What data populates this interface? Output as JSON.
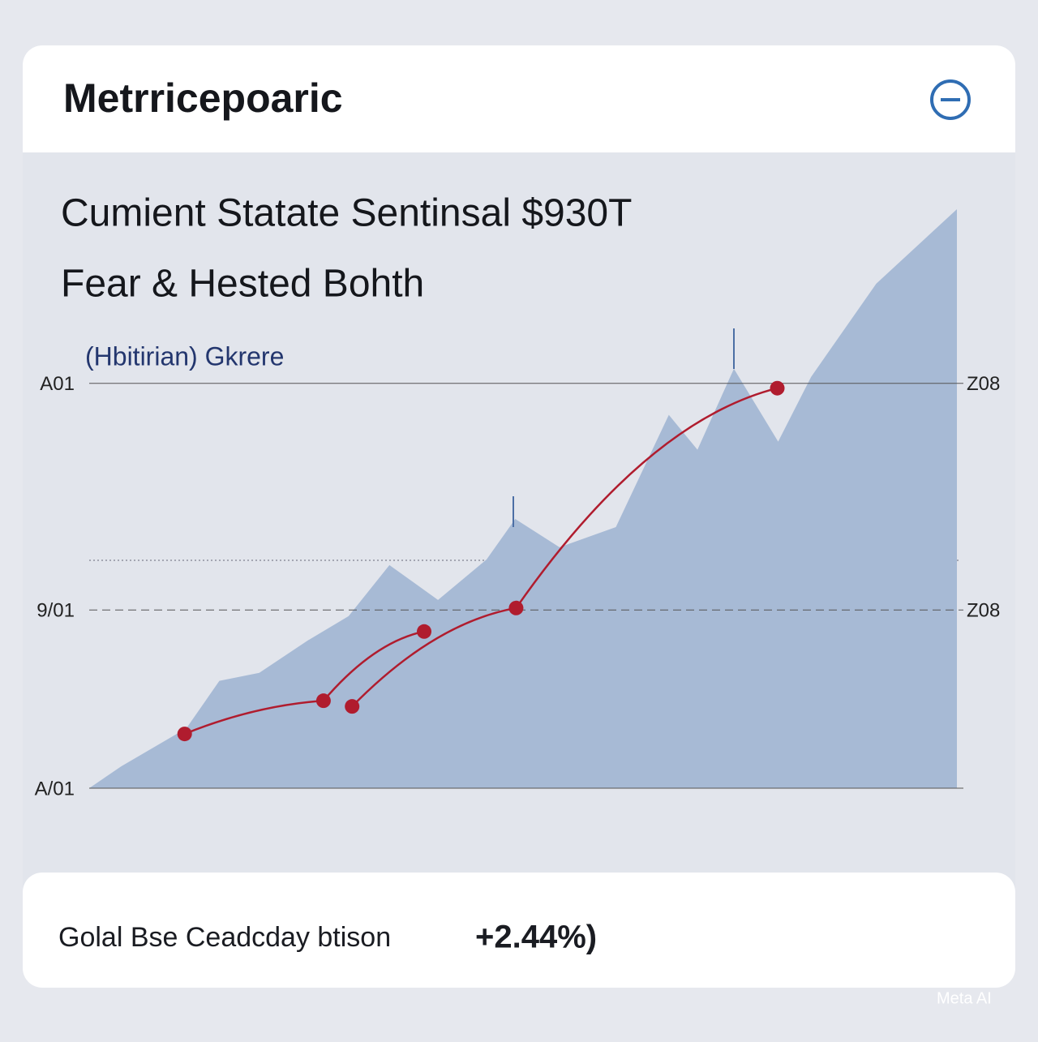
{
  "header": {
    "title": "Metrricepoaric"
  },
  "headline": [
    "Cumient Statate Sentinsal $930T",
    "Fear & Hested Bohth"
  ],
  "chart_data": {
    "type": "area",
    "subtitle": "(Hbitirian) Gkrere",
    "xlim": [
      0,
      100
    ],
    "ylim": [
      0,
      143
    ],
    "yticks": [
      {
        "value": 100,
        "label": "A01"
      },
      {
        "value": 44,
        "label": "9/01"
      },
      {
        "value": 0,
        "label": "A/01"
      }
    ],
    "y2lim": [
      0,
      143
    ],
    "y2ticks": [
      {
        "value": 100,
        "label": "Z08"
      },
      {
        "value": 44,
        "label": "Z08"
      }
    ],
    "series": [
      {
        "type": "area",
        "color": "#a7bad5",
        "x": [
          0,
          3.7,
          11.2,
          15,
          19.6,
          25.2,
          29.9,
          34.6,
          40.2,
          45.8,
          49.1,
          54.2,
          60.7,
          66.8,
          70.1,
          74.3,
          79.4,
          83.2,
          90.7,
          100
        ],
        "values": [
          0,
          5.4,
          14.8,
          26.5,
          28.5,
          36.5,
          42.5,
          55.1,
          46.5,
          56.5,
          66.5,
          59.5,
          64.5,
          92.2,
          83.6,
          103.6,
          85.6,
          101.6,
          124.6,
          143
        ]
      },
      {
        "type": "line",
        "color": "#b01c2e",
        "x": [
          11,
          27,
          38.6
        ],
        "values": [
          13.4,
          21.6,
          38.7
        ]
      },
      {
        "type": "line",
        "color": "#b01c2e",
        "x": [
          30.3,
          49.2,
          79.3
        ],
        "values": [
          20.2,
          44.5,
          98.8
        ]
      }
    ]
  },
  "footer": {
    "label": "Golal Bse Ceadcday btison",
    "change": "+2.44%)"
  },
  "watermark": "Meta AI"
}
